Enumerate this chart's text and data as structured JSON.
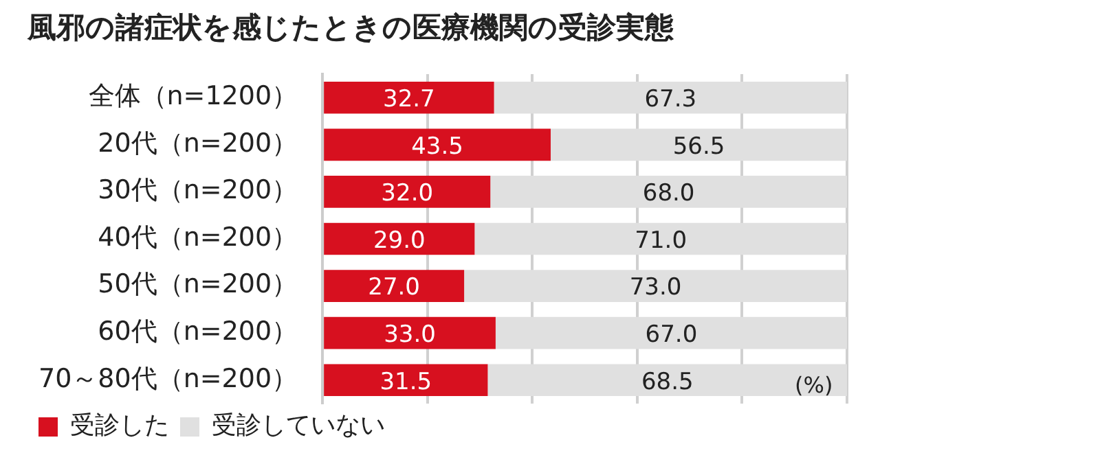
{
  "chart_data": {
    "type": "bar",
    "orientation": "horizontal",
    "stacked": true,
    "title": "風邪の諸症状を感じたときの医療機関の受診実態",
    "categories": [
      "全体（n=1200）",
      "20代（n=200）",
      "30代（n=200）",
      "40代（n=200）",
      "50代（n=200）",
      "60代（n=200）",
      "70～80代（n=200）"
    ],
    "series": [
      {
        "name": "受診した",
        "color": "#d7101f",
        "values": [
          32.7,
          43.5,
          32.0,
          29.0,
          27.0,
          33.0,
          31.5
        ],
        "value_labels": [
          "32.7",
          "43.5",
          "32.0",
          "29.0",
          "27.0",
          "33.0",
          "31.5"
        ]
      },
      {
        "name": "受診していない",
        "color": "#e0e0e0",
        "values": [
          67.3,
          56.5,
          68.0,
          71.0,
          73.0,
          67.0,
          68.5
        ],
        "value_labels": [
          "67.3",
          "56.5",
          "68.0",
          "71.0",
          "73.0",
          "67.0",
          "68.5"
        ]
      }
    ],
    "grid": "x",
    "tick_labels": "y",
    "legend": "bottom",
    "annotations": [
      "(%)"
    ]
  }
}
